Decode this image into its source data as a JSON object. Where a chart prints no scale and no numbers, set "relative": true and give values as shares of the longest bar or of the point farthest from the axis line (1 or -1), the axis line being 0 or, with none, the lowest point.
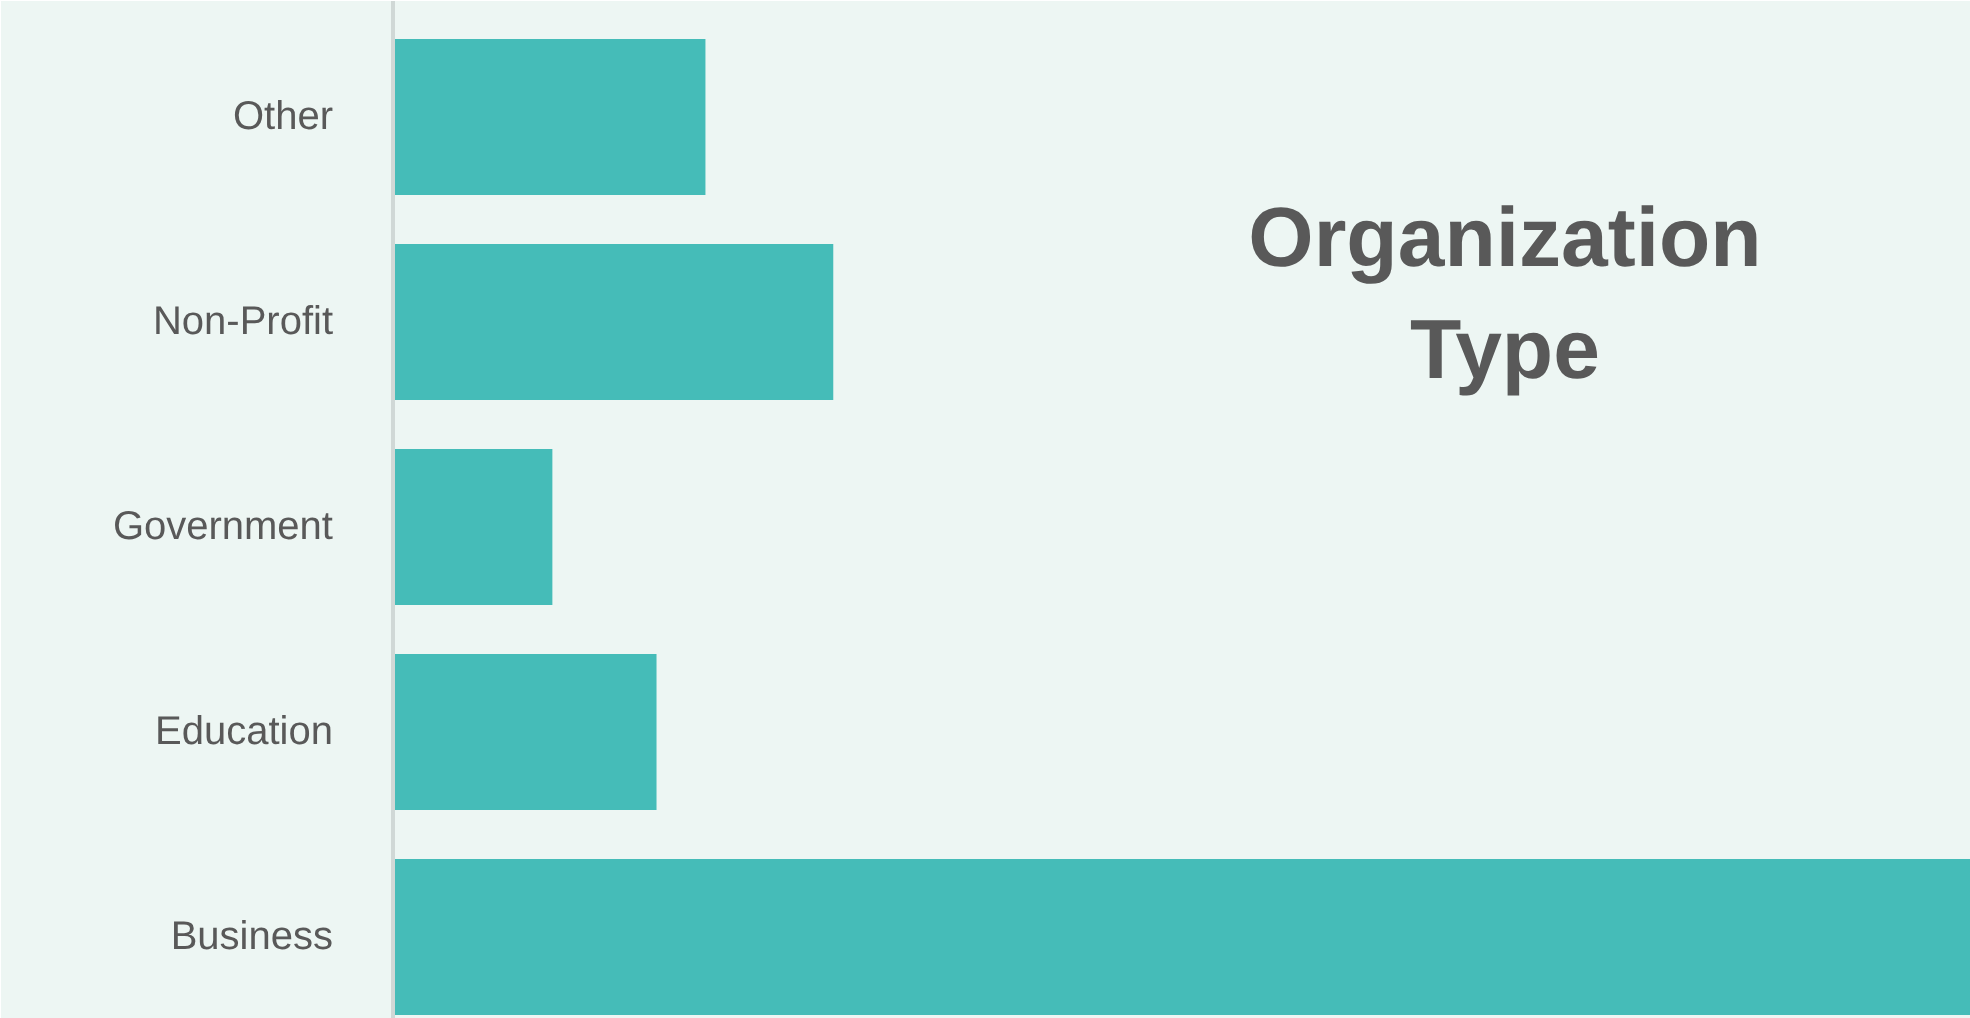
{
  "chart_data": {
    "type": "bar",
    "orientation": "horizontal",
    "relative": true,
    "title": "Organization Type",
    "categories": [
      "Other",
      "Non-Profit",
      "Government",
      "Education",
      "Business"
    ],
    "values": [
      0.198,
      0.279,
      0.101,
      0.167,
      1
    ],
    "color": "#45bcb8",
    "grid": false
  }
}
